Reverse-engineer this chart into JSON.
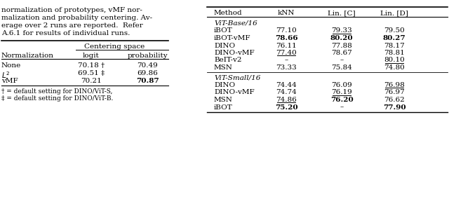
{
  "left_text": [
    "normalization of prototypes, vMF nor-",
    "malization and probability centering. Av-",
    "erage over 2 runs are reported.  Refer",
    "A.6.1 for results of individual runs."
  ],
  "left_table": {
    "header_span": "Centering space",
    "col_headers": [
      "Normalization",
      "logit",
      "probability"
    ],
    "rows": [
      {
        "label": "None",
        "logit": "70.18 †",
        "prob": "70.49",
        "prob_bold": false
      },
      {
        "label": "L2",
        "logit": "69.51 ‡",
        "prob": "69.86",
        "prob_bold": false
      },
      {
        "label": "vMF",
        "logit": "70.21",
        "prob": "70.87",
        "prob_bold": true
      }
    ],
    "footnotes": [
      "† = default setting for DINO/ViT-S,",
      "‡ = default setting for DINO/ViT-B."
    ]
  },
  "right_table": {
    "col_headers": [
      "Method",
      "kNN",
      "Lin. [C]",
      "Lin. [D]"
    ],
    "sections": [
      {
        "section_label": "ViT-Base/16",
        "rows": [
          {
            "method": "iBOT",
            "knn": "77.10",
            "linc": "79.33",
            "lind": "79.50",
            "knn_bold": false,
            "knn_ul": false,
            "linc_bold": false,
            "linc_ul": true,
            "lind_bold": false,
            "lind_ul": false
          },
          {
            "method": "iBOT-vMF",
            "knn": "78.66",
            "linc": "80.20",
            "lind": "80.27",
            "knn_bold": true,
            "knn_ul": false,
            "linc_bold": true,
            "linc_ul": false,
            "lind_bold": true,
            "lind_ul": false
          },
          {
            "method": "DINO",
            "knn": "76.11",
            "linc": "77.88",
            "lind": "78.17",
            "knn_bold": false,
            "knn_ul": false,
            "linc_bold": false,
            "linc_ul": false,
            "lind_bold": false,
            "lind_ul": false
          },
          {
            "method": "DINO-vMF",
            "knn": "77.40",
            "linc": "78.67",
            "lind": "78.81",
            "knn_bold": false,
            "knn_ul": true,
            "linc_bold": false,
            "linc_ul": false,
            "lind_bold": false,
            "lind_ul": false
          },
          {
            "method": "BeIT-v2",
            "knn": "–",
            "linc": "–",
            "lind": "80.10",
            "knn_bold": false,
            "knn_ul": false,
            "linc_bold": false,
            "linc_ul": false,
            "lind_bold": false,
            "lind_ul": true
          },
          {
            "method": "MSN",
            "knn": "73.33",
            "linc": "75.84",
            "lind": "74.80",
            "knn_bold": false,
            "knn_ul": false,
            "linc_bold": false,
            "linc_ul": false,
            "lind_bold": false,
            "lind_ul": false
          }
        ]
      },
      {
        "section_label": "ViT-Small/16",
        "rows": [
          {
            "method": "DINO",
            "knn": "74.44",
            "linc": "76.09",
            "lind": "76.98",
            "knn_bold": false,
            "knn_ul": false,
            "linc_bold": false,
            "linc_ul": false,
            "lind_bold": false,
            "lind_ul": true
          },
          {
            "method": "DINO-vMF",
            "knn": "74.74",
            "linc": "76.19",
            "lind": "76.97",
            "knn_bold": false,
            "knn_ul": false,
            "linc_bold": false,
            "linc_ul": true,
            "lind_bold": false,
            "lind_ul": false
          },
          {
            "method": "MSN",
            "knn": "74.86",
            "linc": "76.20",
            "lind": "76.62",
            "knn_bold": false,
            "knn_ul": true,
            "linc_bold": true,
            "linc_ul": false,
            "lind_bold": false,
            "lind_ul": false
          },
          {
            "method": "iBOT",
            "knn": "75.20",
            "linc": "–",
            "lind": "77.90",
            "knn_bold": true,
            "knn_ul": false,
            "linc_bold": false,
            "linc_ul": false,
            "lind_bold": true,
            "lind_ul": false
          }
        ]
      }
    ]
  }
}
